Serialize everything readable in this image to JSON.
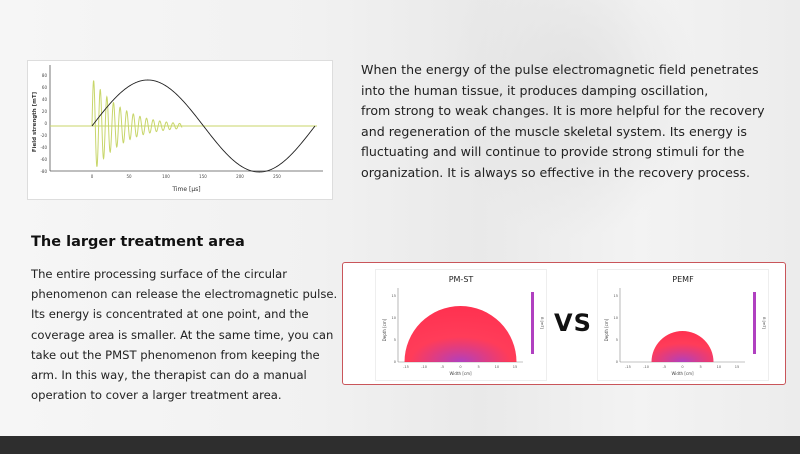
{
  "pulse_chart": {
    "ylabel": "Field strength [mT]",
    "xlabel": "Time [µs]",
    "yticks": [
      "80",
      "60",
      "40",
      "20",
      "0",
      "-20",
      "-40",
      "-60",
      "-80"
    ],
    "xticks": [
      "0",
      "50",
      "100",
      "150",
      "200",
      "250"
    ],
    "colors": {
      "damped": "#c8d66a",
      "sine": "#222222"
    }
  },
  "intro": {
    "lines": [
      "When the energy of the pulse electromagnetic field penetrates",
      "into the human tissue, it produces damping oscillation,",
      "from strong to weak changes. It is more helpful for the recovery",
      "and regeneration of the muscle skeletal system. Its energy is",
      "fluctuating and will continue to provide strong stimuli for the",
      "organization. It is always so effective in the recovery process."
    ]
  },
  "treatment": {
    "heading": "The larger treatment area",
    "lines": [
      "The entire processing surface of the circular",
      "phenomenon can release the electromagnetic pulse.",
      "Its energy is concentrated at one point, and the",
      "coverage area is smaller. At the same time, you can",
      "take out the PMST phenomenon from keeping the",
      "arm. In this way, the therapist can do a manual",
      "operation to cover a larger treatment area."
    ]
  },
  "comparison": {
    "left_title": "PM-ST",
    "right_title": "PEMF",
    "vs": "VS",
    "ylabel": "Depth [cm]",
    "xlabel": "Width [cm]",
    "colorbar_label": "B [mT]",
    "left_xticks": [
      "-15",
      "-10",
      "-5",
      "0",
      "5",
      "10",
      "15"
    ],
    "right_xticks": [
      "-15",
      "-10",
      "-5",
      "0",
      "5",
      "10",
      "15"
    ],
    "yticks": [
      "0",
      "5",
      "10",
      "15"
    ],
    "colors": {
      "border": "#c9555a",
      "field_outer": "#ff1a3c",
      "field_inner": "#b040c0"
    }
  }
}
